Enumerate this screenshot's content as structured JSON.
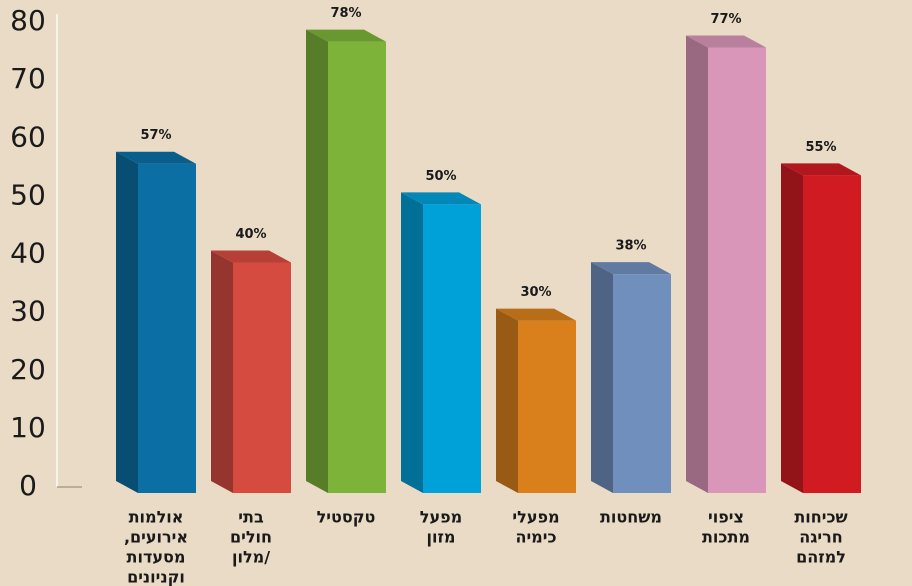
{
  "chart_data": {
    "type": "bar3d",
    "categories": [
      [
        "אולמות",
        "אירועים,",
        "מסעדות",
        "וקניונים"
      ],
      [
        "בתי",
        "חולים",
        "/מלון"
      ],
      [
        "טקסטיל"
      ],
      [
        "מפעל",
        "מזון"
      ],
      [
        "מפעלי",
        "כימיה"
      ],
      [
        "משחטות"
      ],
      [
        "ציפוי",
        "מתכות"
      ],
      [
        "שכיחות",
        "חריגה",
        "למזהם"
      ]
    ],
    "values": [
      57,
      40,
      78,
      50,
      30,
      38,
      77,
      55
    ],
    "value_labels": [
      "57%",
      "40%",
      "78%",
      "50%",
      "30%",
      "38%",
      "77%",
      "55%"
    ],
    "colors": [
      "#0b6fa4",
      "#d64b40",
      "#7db339",
      "#00a0d8",
      "#d9801c",
      "#718fbd",
      "#d996b8",
      "#d01b22"
    ],
    "ylim": [
      0,
      80
    ],
    "yticks": [
      0,
      10,
      20,
      30,
      40,
      50,
      60,
      70,
      80
    ],
    "grid": false
  }
}
